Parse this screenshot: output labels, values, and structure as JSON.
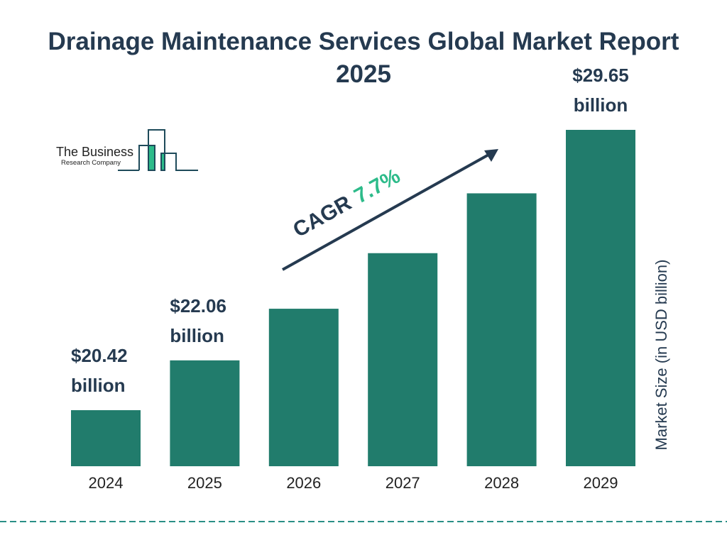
{
  "colors": {
    "bar": "#217c6c",
    "text": "#253a50",
    "cagr": "#2dbb8a",
    "dash": "#2a8f86"
  },
  "logo": {
    "line1": "The Business",
    "line2": "Research Company"
  },
  "cagr": {
    "label": "CAGR",
    "value": "7.7%"
  },
  "chart_data": {
    "type": "bar",
    "title": "Drainage Maintenance Services Global Market Report 2025",
    "ylabel": "Market Size (in USD billion)",
    "xlabel": "",
    "categories": [
      "2024",
      "2025",
      "2026",
      "2027",
      "2028",
      "2029"
    ],
    "values": [
      20.42,
      22.06,
      23.76,
      25.59,
      27.56,
      29.65
    ],
    "data_labels": [
      {
        "index": 0,
        "amount": "$20.42",
        "unit": "billion"
      },
      {
        "index": 1,
        "amount": "$22.06",
        "unit": "billion"
      },
      {
        "index": 5,
        "amount": "$29.65",
        "unit": "billion"
      }
    ],
    "grid": false,
    "legend": "none"
  }
}
